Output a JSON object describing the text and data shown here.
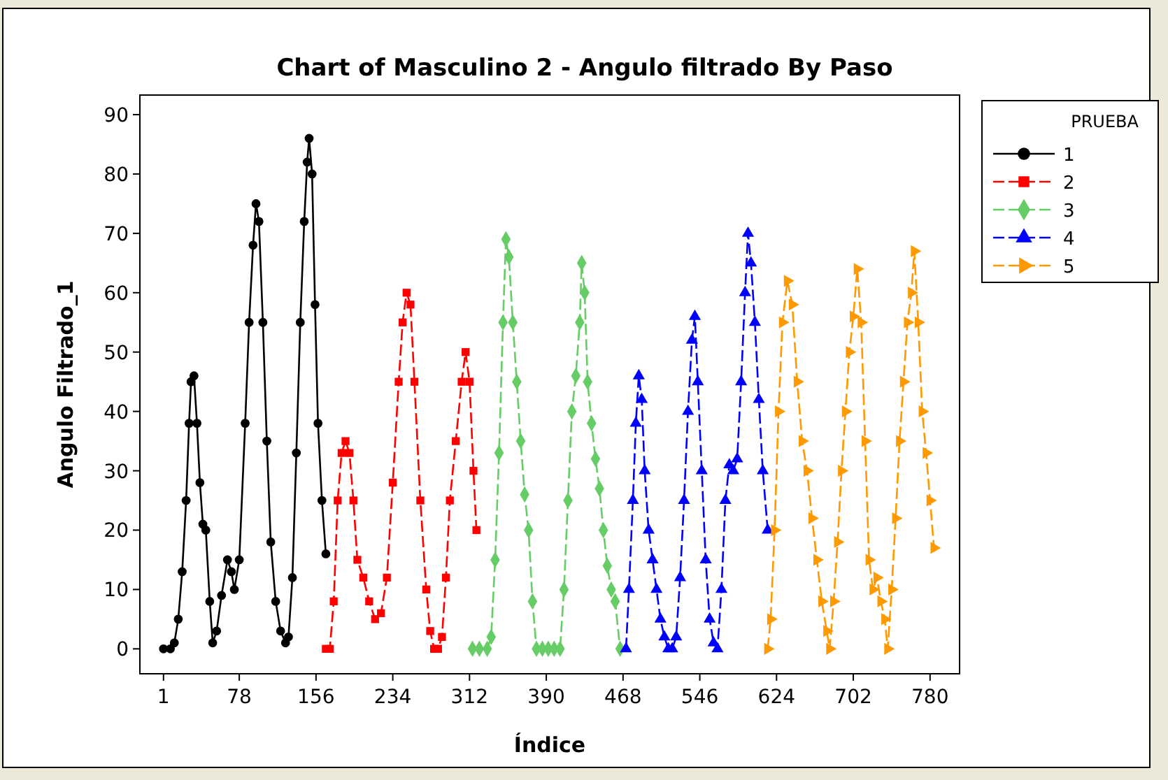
{
  "chart_data": {
    "type": "line",
    "title": "Chart of Masculino 2 - Angulo filtrado By Paso",
    "xlabel": "Índice",
    "ylabel": "Angulo Filtrado_1",
    "legend_title": "PRUEBA",
    "legend": "right",
    "grid": false,
    "xlim": [
      -23,
      810
    ],
    "xticks": [
      1,
      78,
      156,
      234,
      312,
      390,
      468,
      546,
      624,
      702,
      780
    ],
    "ylim": [
      -4.2,
      93.3
    ],
    "yticks": [
      0,
      10,
      20,
      30,
      40,
      50,
      60,
      70,
      80,
      90
    ],
    "series": [
      {
        "name": "1",
        "color": "#000000",
        "marker": "circle",
        "line_style": "solid",
        "x": [
          1,
          8,
          12,
          16,
          20,
          24,
          27,
          29,
          32,
          35,
          38,
          41,
          44,
          48,
          51,
          55,
          60,
          66,
          70,
          73,
          78,
          84,
          88,
          92,
          95,
          98,
          102,
          106,
          110,
          115,
          120,
          125,
          128,
          132,
          136,
          140,
          144,
          147,
          149,
          152,
          155,
          158,
          162,
          166
        ],
        "values": [
          0,
          0,
          1,
          5,
          13,
          25,
          38,
          45,
          46,
          38,
          28,
          21,
          20,
          8,
          1,
          3,
          9,
          15,
          13,
          10,
          15,
          38,
          55,
          68,
          75,
          72,
          55,
          35,
          18,
          8,
          3,
          1,
          2,
          12,
          33,
          55,
          72,
          82,
          86,
          80,
          58,
          38,
          25,
          16
        ]
      },
      {
        "name": "2",
        "color": "#ff0000",
        "marker": "square",
        "line_style": "dashed",
        "x": [
          166,
          170,
          174,
          178,
          182,
          186,
          190,
          194,
          198,
          204,
          210,
          216,
          222,
          228,
          234,
          240,
          244,
          248,
          252,
          256,
          262,
          268,
          272,
          276,
          280,
          284,
          288,
          292,
          298,
          304,
          308,
          312,
          316,
          319
        ],
        "values": [
          0,
          0,
          8,
          25,
          33,
          35,
          33,
          25,
          15,
          12,
          8,
          5,
          6,
          12,
          28,
          45,
          55,
          60,
          58,
          45,
          25,
          10,
          3,
          0,
          0,
          2,
          12,
          25,
          35,
          45,
          50,
          45,
          30,
          20
        ]
      },
      {
        "name": "3",
        "color": "#66cc66",
        "marker": "diamond",
        "line_style": "dashed",
        "x": [
          315,
          322,
          330,
          334,
          338,
          342,
          346,
          349,
          352,
          356,
          360,
          364,
          368,
          372,
          376,
          380,
          386,
          392,
          398,
          404,
          408,
          412,
          416,
          420,
          424,
          426,
          429,
          432,
          436,
          440,
          444,
          448,
          452,
          456,
          460,
          465
        ],
        "values": [
          0,
          0,
          0,
          2,
          15,
          33,
          55,
          69,
          66,
          55,
          45,
          35,
          26,
          20,
          8,
          0,
          0,
          0,
          0,
          0,
          10,
          25,
          40,
          46,
          55,
          65,
          60,
          45,
          38,
          32,
          27,
          20,
          14,
          10,
          8,
          0
        ]
      },
      {
        "name": "4",
        "color": "#0000ff",
        "marker": "triangle",
        "line_style": "dashed",
        "x": [
          471,
          474,
          478,
          481,
          484,
          487,
          490,
          494,
          498,
          502,
          506,
          510,
          514,
          518,
          522,
          526,
          530,
          534,
          538,
          541,
          544,
          548,
          552,
          556,
          560,
          564,
          568,
          572,
          576,
          580,
          584,
          588,
          592,
          595,
          598,
          602,
          606,
          610,
          615
        ],
        "values": [
          0,
          10,
          25,
          38,
          46,
          42,
          30,
          20,
          15,
          10,
          5,
          2,
          0,
          0,
          2,
          12,
          25,
          40,
          52,
          56,
          45,
          30,
          15,
          5,
          1,
          0,
          10,
          25,
          31,
          30,
          32,
          45,
          60,
          70,
          65,
          55,
          42,
          30,
          20
        ]
      },
      {
        "name": "5",
        "color": "#ff9900",
        "marker": "triangle-right",
        "line_style": "dashed",
        "x": [
          615,
          618,
          622,
          626,
          630,
          635,
          640,
          645,
          650,
          655,
          660,
          665,
          670,
          675,
          678,
          682,
          686,
          690,
          694,
          698,
          702,
          706,
          710,
          714,
          718,
          722,
          726,
          730,
          734,
          737,
          741,
          745,
          749,
          753,
          757,
          761,
          764,
          768,
          772,
          776,
          780,
          784
        ],
        "values": [
          0,
          5,
          20,
          40,
          55,
          62,
          58,
          45,
          35,
          30,
          22,
          15,
          8,
          3,
          0,
          8,
          18,
          30,
          40,
          50,
          56,
          64,
          55,
          35,
          15,
          10,
          12,
          8,
          5,
          0,
          10,
          22,
          35,
          45,
          55,
          60,
          67,
          55,
          40,
          33,
          25,
          17
        ]
      }
    ]
  }
}
